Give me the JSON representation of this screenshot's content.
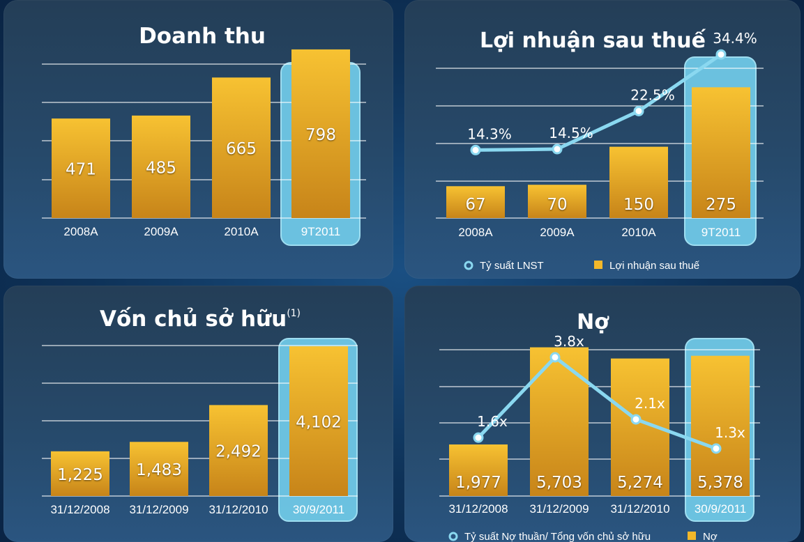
{
  "chart_data": [
    {
      "type": "bar",
      "title": "Doanh thu",
      "categories": [
        "2008A",
        "2009A",
        "2010A",
        "9T2011"
      ],
      "values": [
        471,
        485,
        665,
        798
      ],
      "value_labels": [
        "471",
        "485",
        "665",
        "798"
      ],
      "highlight": "9T2011",
      "ylim": [
        0,
        900
      ],
      "grid": true
    },
    {
      "type": "bar",
      "title": "Lợi nhuận sau thuế",
      "categories": [
        "2008A",
        "2009A",
        "2010A",
        "9T2011"
      ],
      "series": [
        {
          "name": "Lợi nhuận sau thuế",
          "type": "bar",
          "values": [
            67,
            70,
            150,
            275
          ],
          "labels": [
            "67",
            "70",
            "150",
            "275"
          ]
        },
        {
          "name": "Tỷ suất LNST",
          "type": "line",
          "values": [
            14.3,
            14.5,
            22.5,
            34.4
          ],
          "labels": [
            "14.3%",
            "14.5%",
            "22.5%",
            "34.4%"
          ]
        }
      ],
      "highlight": "9T2011",
      "ylim": [
        0,
        400
      ],
      "ylim_line": [
        0,
        40
      ],
      "grid": true,
      "legend_position": "bottom"
    },
    {
      "type": "bar",
      "title": "Vốn chủ sở hữu",
      "title_superscript": "(1)",
      "categories": [
        "31/12/2008",
        "31/12/2009",
        "31/12/2010",
        "30/9/2011"
      ],
      "values": [
        1225,
        1483,
        2492,
        4102
      ],
      "value_labels": [
        "1,225",
        "1,483",
        "2,492",
        "4,102"
      ],
      "highlight": "30/9/2011",
      "ylim": [
        0,
        5000
      ],
      "grid": true
    },
    {
      "type": "bar",
      "title": "Nợ",
      "categories": [
        "31/12/2008",
        "31/12/2009",
        "31/12/2010",
        "30/9/2011"
      ],
      "series": [
        {
          "name": "Nợ",
          "type": "bar",
          "values": [
            1977,
            5703,
            5274,
            5378
          ],
          "labels": [
            "1,977",
            "5,703",
            "5,274",
            "5,378"
          ]
        },
        {
          "name": "Tỷ suất Nợ thuần/ Tổng vốn chủ sở hữu",
          "type": "line",
          "values": [
            1.6,
            3.8,
            2.1,
            1.3
          ],
          "labels": [
            "1.6x",
            "3.8x",
            "2.1x",
            "1.3x"
          ]
        }
      ],
      "highlight": "30/9/2011",
      "ylim": [
        0,
        7000
      ],
      "ylim_line": [
        0,
        5
      ],
      "grid": true,
      "legend_position": "bottom"
    }
  ],
  "colors": {
    "bar_top": "#f3b82a",
    "bar_bottom": "#c8881a",
    "highlight": "#6fc8e6",
    "ratio_line": "#8ad8f0",
    "panel": "#26496a"
  }
}
